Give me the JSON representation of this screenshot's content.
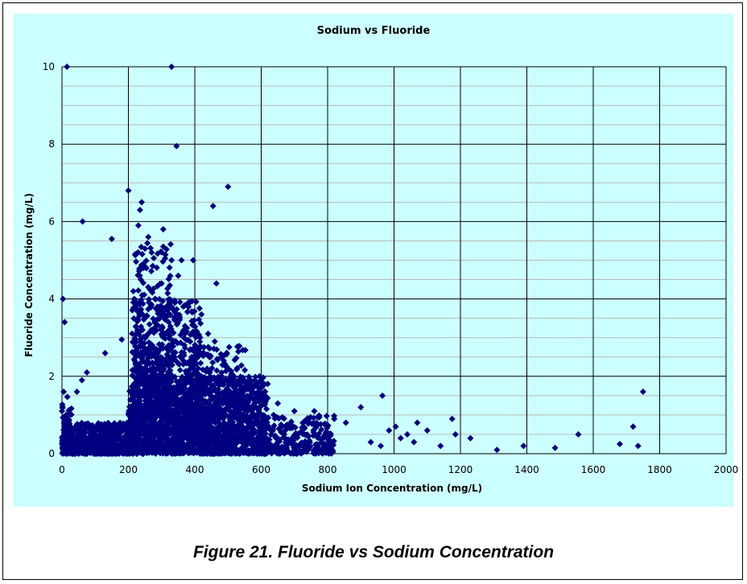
{
  "caption": "Figure 21. Fluoride vs Sodium Concentration",
  "colors": {
    "plot_background": "#ccffff",
    "marker": "#000080",
    "grid": "#000000",
    "minor_grid": "#b8b8b8"
  },
  "chart_data": {
    "type": "scatter",
    "title": "Sodium vs Fluoride",
    "xlabel": "Sodium Ion Concentration (mg/L)",
    "ylabel": "Fluoride Concentration (mg/L)",
    "xlim": [
      0,
      2000
    ],
    "ylim": [
      0,
      10
    ],
    "xticks": [
      0,
      200,
      400,
      600,
      800,
      1000,
      1200,
      1400,
      1600,
      1800,
      2000
    ],
    "yticks": [
      0,
      2,
      4,
      6,
      8,
      10
    ],
    "grid": true,
    "legend": "none",
    "marker": "diamond",
    "points": [
      [
        15,
        10
      ],
      [
        330,
        10
      ],
      [
        345,
        7.95
      ],
      [
        200,
        6.8
      ],
      [
        500,
        6.9
      ],
      [
        62,
        6
      ],
      [
        455,
        6.4
      ],
      [
        240,
        6.5
      ],
      [
        235,
        6.3
      ],
      [
        230,
        5.9
      ],
      [
        150,
        5.55
      ],
      [
        260,
        5.6
      ],
      [
        250,
        5.3
      ],
      [
        305,
        5.8
      ],
      [
        270,
        5.2
      ],
      [
        350,
        4.6
      ],
      [
        360,
        5
      ],
      [
        330,
        5
      ],
      [
        395,
        5
      ],
      [
        465,
        4.4
      ],
      [
        3,
        4
      ],
      [
        8,
        3.4
      ],
      [
        130,
        2.6
      ],
      [
        5,
        1.6
      ],
      [
        60,
        1.9
      ],
      [
        75,
        2.1
      ],
      [
        45,
        1.6
      ],
      [
        180,
        2.95
      ],
      [
        215,
        4.2
      ],
      [
        245,
        4.8
      ],
      [
        280,
        4.0
      ],
      [
        300,
        4.4
      ],
      [
        340,
        3.9
      ],
      [
        380,
        3.9
      ],
      [
        420,
        3.6
      ],
      [
        440,
        3.1
      ],
      [
        460,
        2.9
      ],
      [
        480,
        2.5
      ],
      [
        500,
        2.2
      ],
      [
        540,
        1.9
      ],
      [
        595,
        2.0
      ],
      [
        610,
        1.6
      ],
      [
        650,
        1.3
      ],
      [
        700,
        1.1
      ],
      [
        760,
        1.1
      ],
      [
        820,
        0.9
      ],
      [
        855,
        0.8
      ],
      [
        900,
        1.2
      ],
      [
        965,
        1.5
      ],
      [
        985,
        0.6
      ],
      [
        1005,
        0.7
      ],
      [
        1040,
        0.5
      ],
      [
        1070,
        0.8
      ],
      [
        1100,
        0.6
      ],
      [
        1140,
        0.2
      ],
      [
        1175,
        0.9
      ],
      [
        1185,
        0.5
      ],
      [
        1230,
        0.4
      ],
      [
        1310,
        0.1
      ],
      [
        1390,
        0.2
      ],
      [
        1485,
        0.15
      ],
      [
        1555,
        0.5
      ],
      [
        1680,
        0.25
      ],
      [
        1720,
        0.7
      ],
      [
        1735,
        0.2
      ],
      [
        1750,
        1.6
      ],
      [
        930,
        0.3
      ],
      [
        960,
        0.2
      ],
      [
        1020,
        0.4
      ],
      [
        1060,
        0.3
      ]
    ]
  }
}
